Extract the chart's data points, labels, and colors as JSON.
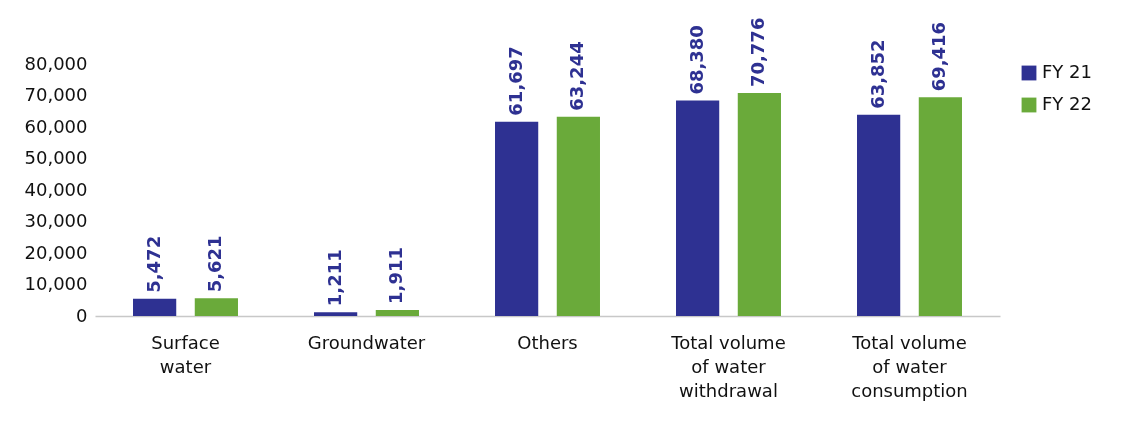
{
  "chart_data": {
    "type": "bar",
    "categories": [
      "Surface water",
      "Groundwater",
      "Others",
      "Total volume of water withdrawal",
      "Total volume of water consumption"
    ],
    "series": [
      {
        "name": "FY 21",
        "color": "#2e3192",
        "values": [
          5472,
          1211,
          61697,
          68380,
          63852
        ],
        "value_labels": [
          "5,472",
          "1,211",
          "61,697",
          "68,380",
          "63,852"
        ]
      },
      {
        "name": "FY 22",
        "color": "#6aaa3a",
        "values": [
          5621,
          1911,
          63244,
          70776,
          69416
        ],
        "value_labels": [
          "5,621",
          "1,911",
          "63,244",
          "70,776",
          "69,416"
        ]
      }
    ],
    "ylim": [
      0,
      80000
    ],
    "yticks": [
      0,
      {
        "value": 10000,
        "label": "10,000"
      },
      {
        "value": 20000,
        "label": "20,000"
      },
      {
        "value": 30000,
        "label": "30,000"
      },
      {
        "value": 40000,
        "label": "40,000"
      },
      {
        "value": 50000,
        "label": "50,000"
      },
      {
        "value": 60000,
        "label": "60,000"
      },
      {
        "value": 70000,
        "label": "70,000"
      },
      {
        "value": 80000,
        "label": "80,000"
      }
    ],
    "legend": "right",
    "grid": false
  }
}
